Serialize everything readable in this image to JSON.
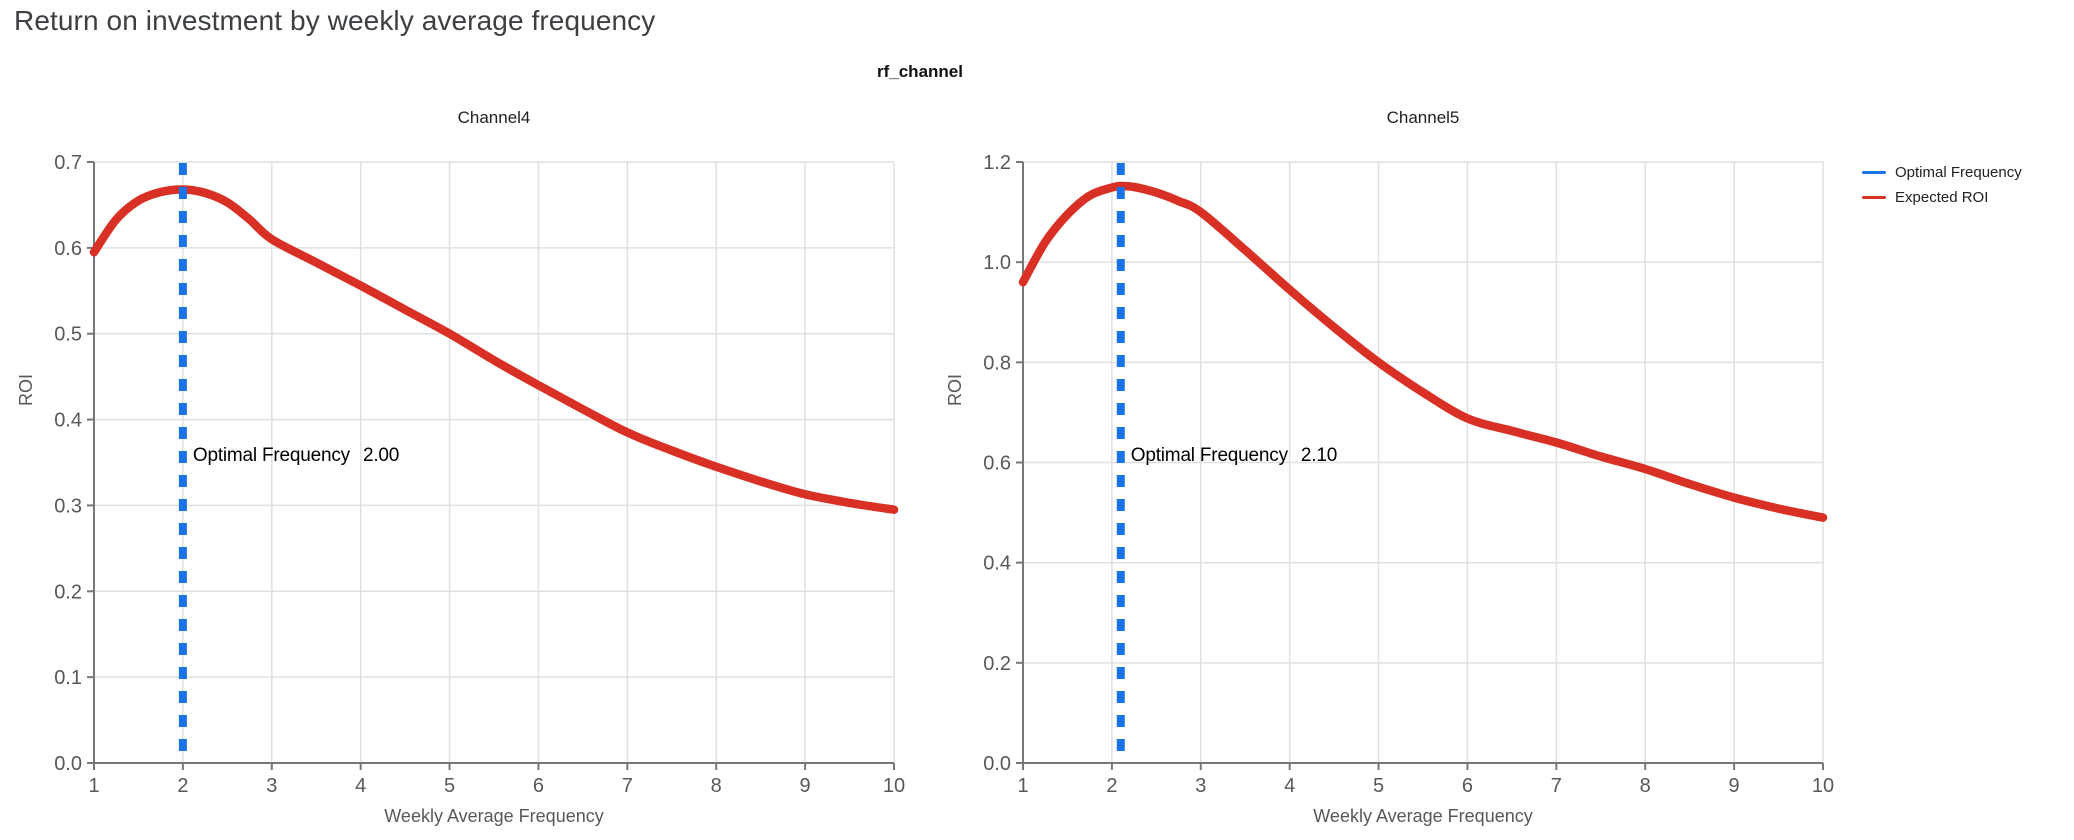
{
  "page": {
    "title": "Return on investment by weekly average frequency",
    "facet_title": "rf_channel"
  },
  "legend": {
    "position": "top-right",
    "items": [
      {
        "label": "Optimal Frequency",
        "color": "#1a73e8",
        "symbol": "line"
      },
      {
        "label": "Expected ROI",
        "color": "#d93025",
        "symbol": "line"
      }
    ]
  },
  "colors": {
    "expected_roi_line": "#d93025",
    "optimal_frequency_line": "#1a73e8",
    "gridline": "#e0e0e0",
    "axis_line": "#76777a",
    "tick_label": "#56585c",
    "axis_title": "#56585c",
    "annotation_text": "#000000",
    "page_title": "#3c4043"
  },
  "chart_data": [
    {
      "type": "line",
      "title": "Channel4",
      "xlabel": "Weekly Average Frequency",
      "ylabel": "ROI",
      "xlim": [
        1,
        10
      ],
      "ylim": [
        0,
        0.7
      ],
      "x_ticks": [
        1,
        2,
        3,
        4,
        5,
        6,
        7,
        8,
        9,
        10
      ],
      "y_ticks": [
        0.0,
        0.1,
        0.2,
        0.3,
        0.4,
        0.5,
        0.6,
        0.7
      ],
      "grid": true,
      "optimal_frequency": 2.0,
      "annotation": {
        "label": "Optimal Frequency",
        "value": "2.00"
      },
      "series": [
        {
          "name": "Expected ROI",
          "x": [
            1,
            1.25,
            1.5,
            1.75,
            2,
            2.25,
            2.5,
            2.75,
            3,
            3.5,
            4,
            4.5,
            5,
            5.5,
            6,
            6.5,
            7,
            7.5,
            8,
            8.5,
            9,
            9.5,
            10
          ],
          "y": [
            0.595,
            0.633,
            0.655,
            0.665,
            0.668,
            0.664,
            0.653,
            0.633,
            0.61,
            0.583,
            0.556,
            0.528,
            0.5,
            0.469,
            0.44,
            0.412,
            0.385,
            0.364,
            0.345,
            0.328,
            0.313,
            0.303,
            0.295
          ]
        }
      ]
    },
    {
      "type": "line",
      "title": "Channel5",
      "xlabel": "Weekly Average Frequency",
      "ylabel": "ROI",
      "xlim": [
        1,
        10
      ],
      "ylim": [
        0,
        1.2
      ],
      "x_ticks": [
        1,
        2,
        3,
        4,
        5,
        6,
        7,
        8,
        9,
        10
      ],
      "y_ticks": [
        0.0,
        0.2,
        0.4,
        0.6,
        0.8,
        1.0,
        1.2
      ],
      "grid": true,
      "optimal_frequency": 2.1,
      "annotation": {
        "label": "Optimal Frequency",
        "value": "2.10"
      },
      "series": [
        {
          "name": "Expected ROI",
          "x": [
            1,
            1.25,
            1.5,
            1.75,
            2,
            2.1,
            2.25,
            2.5,
            2.75,
            3,
            3.5,
            4,
            4.5,
            5,
            5.5,
            6,
            6.5,
            7,
            7.5,
            8,
            8.5,
            9,
            9.5,
            10
          ],
          "y": [
            0.96,
            1.04,
            1.095,
            1.133,
            1.149,
            1.152,
            1.15,
            1.139,
            1.122,
            1.1,
            1.024,
            0.945,
            0.87,
            0.8,
            0.74,
            0.688,
            0.663,
            0.64,
            0.612,
            0.587,
            0.557,
            0.53,
            0.508,
            0.49
          ]
        }
      ]
    }
  ]
}
